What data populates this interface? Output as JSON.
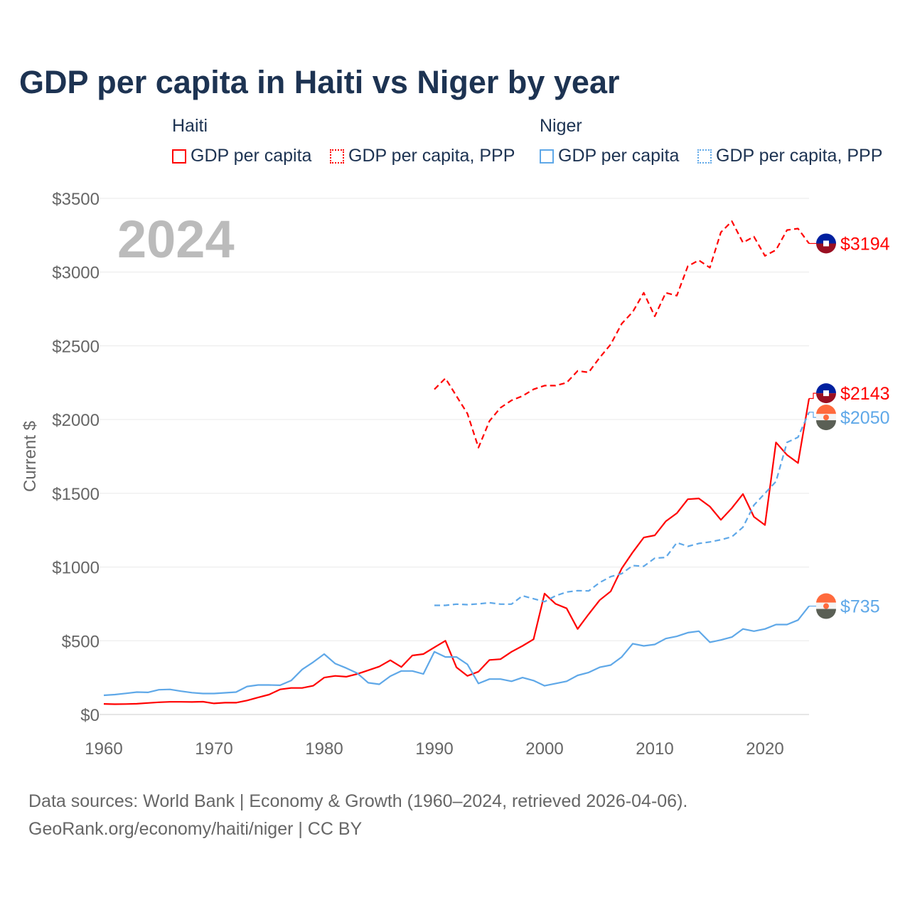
{
  "title": "GDP per capita in Haiti vs Niger by year",
  "legend": {
    "groups": [
      {
        "name": "Haiti",
        "items": [
          "GDP per capita",
          "GDP per capita, PPP"
        ],
        "color": "#ff0000"
      },
      {
        "name": "Niger",
        "items": [
          "GDP per capita",
          "GDP per capita, PPP"
        ],
        "color": "#5fa8e8"
      }
    ]
  },
  "year_label": "2024",
  "source_lines": [
    "Data sources: World Bank | Economy & Growth (1960–2024, retrieved 2026-04-06).",
    "GeoRank.org/economy/haiti/niger | CC BY"
  ],
  "chart_data": {
    "type": "line",
    "title": "GDP per capita in Haiti vs Niger by year",
    "xlabel": "",
    "ylabel": "Current $",
    "xlim": [
      1960,
      2024
    ],
    "ylim": [
      0,
      3500
    ],
    "x_ticks": [
      "1960",
      "1970",
      "1980",
      "1990",
      "2000",
      "2010",
      "2020"
    ],
    "y_ticks": [
      "$0",
      "$500",
      "$1000",
      "$1500",
      "$2000",
      "$2500",
      "$3000",
      "$3500"
    ],
    "grid": true,
    "series": [
      {
        "name": "Haiti GDP per capita",
        "color": "#ff0000",
        "dash": false,
        "start": 1960,
        "end_label": "$2143",
        "flag": "haiti",
        "values": [
          72,
          70,
          71,
          73,
          78,
          83,
          86,
          86,
          85,
          87,
          75,
          80,
          80,
          95,
          115,
          135,
          170,
          180,
          180,
          195,
          250,
          262,
          256,
          275,
          300,
          325,
          368,
          322,
          400,
          410,
          455,
          500,
          320,
          262,
          290,
          370,
          375,
          425,
          465,
          510,
          820,
          750,
          720,
          580,
          680,
          775,
          835,
          990,
          1100,
          1200,
          1215,
          1310,
          1365,
          1460,
          1465,
          1410,
          1320,
          1400,
          1495,
          1340,
          1285,
          1845,
          1760,
          1705,
          2143
        ]
      },
      {
        "name": "Haiti GDP per capita, PPP",
        "color": "#ff0000",
        "dash": true,
        "start": 1990,
        "end_label": "$3194",
        "flag": "haiti",
        "values": [
          2205,
          2280,
          2160,
          2040,
          1810,
          1990,
          2080,
          2130,
          2160,
          2205,
          2230,
          2230,
          2250,
          2330,
          2320,
          2420,
          2510,
          2650,
          2730,
          2860,
          2700,
          2860,
          2840,
          3040,
          3080,
          3030,
          3270,
          3345,
          3200,
          3240,
          3110,
          3150,
          3285,
          3295,
          3194
        ]
      },
      {
        "name": "Niger GDP per capita",
        "color": "#5fa8e8",
        "dash": false,
        "start": 1960,
        "end_label": "$735",
        "flag": "niger",
        "values": [
          130,
          135,
          143,
          152,
          150,
          168,
          170,
          158,
          148,
          142,
          142,
          147,
          152,
          190,
          200,
          200,
          198,
          230,
          305,
          355,
          410,
          345,
          315,
          280,
          215,
          205,
          260,
          295,
          295,
          275,
          425,
          390,
          390,
          340,
          210,
          240,
          240,
          225,
          250,
          230,
          195,
          210,
          225,
          265,
          285,
          320,
          335,
          390,
          480,
          465,
          475,
          515,
          530,
          555,
          565,
          490,
          505,
          525,
          580,
          565,
          580,
          610,
          610,
          640,
          735
        ]
      },
      {
        "name": "Niger GDP per capita, PPP",
        "color": "#5fa8e8",
        "dash": true,
        "start": 1990,
        "end_label": "$2050",
        "flag": "niger",
        "values": [
          740,
          740,
          748,
          745,
          750,
          758,
          748,
          748,
          805,
          785,
          765,
          805,
          830,
          840,
          838,
          895,
          935,
          955,
          1010,
          1005,
          1060,
          1065,
          1165,
          1140,
          1160,
          1170,
          1185,
          1205,
          1270,
          1420,
          1500,
          1580,
          1845,
          1880,
          2050
        ]
      }
    ]
  }
}
